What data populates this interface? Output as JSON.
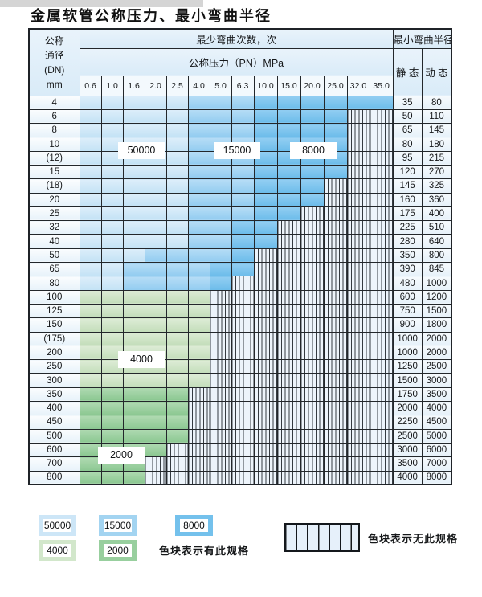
{
  "page_title": "金属软管公称压力、最小弯曲半径",
  "table": {
    "dn_header_lines": [
      "公称",
      "通径",
      "(DN)",
      "mm"
    ],
    "cycles_header": "最少弯曲次数，次",
    "pressure_header": "公称压力（PN）MPa",
    "pressure_columns": [
      "0.6",
      "1.0",
      "1.6",
      "2.0",
      "2.5",
      "4.0",
      "5.0",
      "6.3",
      "10.0",
      "15.0",
      "20.0",
      "25.0",
      "32.0",
      "35.0"
    ],
    "radius_header": "最小弯曲半径",
    "static_header": "静 态",
    "dynamic_header": "动 态",
    "overlay_labels": [
      "50000",
      "15000",
      "8000",
      "4000",
      "2000"
    ]
  },
  "chart_data": {
    "type": "table",
    "title": "金属软管公称压力、最小弯曲半径",
    "pressure_columns_MPa": [
      0.6,
      1.0,
      1.6,
      2.0,
      2.5,
      4.0,
      5.0,
      6.3,
      10.0,
      15.0,
      20.0,
      25.0,
      32.0,
      35.0
    ],
    "cycle_value_levels": [
      50000,
      15000,
      8000,
      4000,
      2000
    ],
    "legend_note_has_spec": "色块表示有此规格",
    "legend_note_no_spec": "色块表示无此规格",
    "rows": [
      {
        "dn": "4",
        "cycles": [
          50000,
          50000,
          50000,
          50000,
          50000,
          15000,
          15000,
          15000,
          8000,
          8000,
          8000,
          8000,
          8000,
          8000
        ],
        "static": 35,
        "dynamic": 80
      },
      {
        "dn": "6",
        "cycles": [
          50000,
          50000,
          50000,
          50000,
          50000,
          15000,
          15000,
          15000,
          8000,
          8000,
          8000,
          8000,
          null,
          null
        ],
        "static": 50,
        "dynamic": 110
      },
      {
        "dn": "8",
        "cycles": [
          50000,
          50000,
          50000,
          50000,
          50000,
          15000,
          15000,
          15000,
          8000,
          8000,
          8000,
          8000,
          null,
          null
        ],
        "static": 65,
        "dynamic": 145
      },
      {
        "dn": "10",
        "cycles": [
          50000,
          50000,
          50000,
          50000,
          50000,
          15000,
          15000,
          15000,
          8000,
          8000,
          8000,
          8000,
          null,
          null
        ],
        "static": 80,
        "dynamic": 180
      },
      {
        "dn": "(12)",
        "cycles": [
          50000,
          50000,
          50000,
          50000,
          50000,
          15000,
          15000,
          15000,
          8000,
          8000,
          8000,
          8000,
          null,
          null
        ],
        "static": 95,
        "dynamic": 215
      },
      {
        "dn": "15",
        "cycles": [
          50000,
          50000,
          50000,
          50000,
          50000,
          15000,
          15000,
          15000,
          8000,
          8000,
          8000,
          8000,
          null,
          null
        ],
        "static": 120,
        "dynamic": 270
      },
      {
        "dn": "(18)",
        "cycles": [
          50000,
          50000,
          50000,
          50000,
          50000,
          15000,
          15000,
          15000,
          8000,
          8000,
          8000,
          null,
          null,
          null
        ],
        "static": 145,
        "dynamic": 325
      },
      {
        "dn": "20",
        "cycles": [
          50000,
          50000,
          50000,
          50000,
          50000,
          15000,
          15000,
          15000,
          8000,
          8000,
          8000,
          null,
          null,
          null
        ],
        "static": 160,
        "dynamic": 360
      },
      {
        "dn": "25",
        "cycles": [
          50000,
          50000,
          50000,
          50000,
          50000,
          15000,
          15000,
          15000,
          8000,
          8000,
          null,
          null,
          null,
          null
        ],
        "static": 175,
        "dynamic": 400
      },
      {
        "dn": "32",
        "cycles": [
          50000,
          50000,
          50000,
          50000,
          50000,
          15000,
          15000,
          8000,
          8000,
          null,
          null,
          null,
          null,
          null
        ],
        "static": 225,
        "dynamic": 510
      },
      {
        "dn": "40",
        "cycles": [
          50000,
          50000,
          50000,
          50000,
          50000,
          15000,
          15000,
          8000,
          8000,
          null,
          null,
          null,
          null,
          null
        ],
        "static": 280,
        "dynamic": 640
      },
      {
        "dn": "50",
        "cycles": [
          50000,
          50000,
          50000,
          15000,
          15000,
          15000,
          15000,
          8000,
          null,
          null,
          null,
          null,
          null,
          null
        ],
        "static": 350,
        "dynamic": 800
      },
      {
        "dn": "65",
        "cycles": [
          50000,
          50000,
          15000,
          15000,
          15000,
          15000,
          8000,
          8000,
          null,
          null,
          null,
          null,
          null,
          null
        ],
        "static": 390,
        "dynamic": 845
      },
      {
        "dn": "80",
        "cycles": [
          50000,
          50000,
          15000,
          15000,
          15000,
          15000,
          8000,
          null,
          null,
          null,
          null,
          null,
          null,
          null
        ],
        "static": 480,
        "dynamic": 1000
      },
      {
        "dn": "100",
        "cycles": [
          4000,
          4000,
          4000,
          4000,
          4000,
          4000,
          null,
          null,
          null,
          null,
          null,
          null,
          null,
          null
        ],
        "static": 600,
        "dynamic": 1200
      },
      {
        "dn": "125",
        "cycles": [
          4000,
          4000,
          4000,
          4000,
          4000,
          4000,
          null,
          null,
          null,
          null,
          null,
          null,
          null,
          null
        ],
        "static": 750,
        "dynamic": 1500
      },
      {
        "dn": "150",
        "cycles": [
          4000,
          4000,
          4000,
          4000,
          4000,
          4000,
          null,
          null,
          null,
          null,
          null,
          null,
          null,
          null
        ],
        "static": 900,
        "dynamic": 1800
      },
      {
        "dn": "(175)",
        "cycles": [
          4000,
          4000,
          4000,
          4000,
          4000,
          4000,
          null,
          null,
          null,
          null,
          null,
          null,
          null,
          null
        ],
        "static": 1000,
        "dynamic": 2000
      },
      {
        "dn": "200",
        "cycles": [
          4000,
          4000,
          4000,
          4000,
          4000,
          4000,
          null,
          null,
          null,
          null,
          null,
          null,
          null,
          null
        ],
        "static": 1000,
        "dynamic": 2000
      },
      {
        "dn": "250",
        "cycles": [
          4000,
          4000,
          4000,
          4000,
          4000,
          4000,
          null,
          null,
          null,
          null,
          null,
          null,
          null,
          null
        ],
        "static": 1250,
        "dynamic": 2500
      },
      {
        "dn": "300",
        "cycles": [
          4000,
          4000,
          4000,
          4000,
          4000,
          4000,
          null,
          null,
          null,
          null,
          null,
          null,
          null,
          null
        ],
        "static": 1500,
        "dynamic": 3000
      },
      {
        "dn": "350",
        "cycles": [
          2000,
          2000,
          2000,
          2000,
          2000,
          null,
          null,
          null,
          null,
          null,
          null,
          null,
          null,
          null
        ],
        "static": 1750,
        "dynamic": 3500
      },
      {
        "dn": "400",
        "cycles": [
          2000,
          2000,
          2000,
          2000,
          2000,
          null,
          null,
          null,
          null,
          null,
          null,
          null,
          null,
          null
        ],
        "static": 2000,
        "dynamic": 4000
      },
      {
        "dn": "450",
        "cycles": [
          2000,
          2000,
          2000,
          2000,
          2000,
          null,
          null,
          null,
          null,
          null,
          null,
          null,
          null,
          null
        ],
        "static": 2250,
        "dynamic": 4500
      },
      {
        "dn": "500",
        "cycles": [
          2000,
          2000,
          2000,
          2000,
          2000,
          null,
          null,
          null,
          null,
          null,
          null,
          null,
          null,
          null
        ],
        "static": 2500,
        "dynamic": 5000
      },
      {
        "dn": "600",
        "cycles": [
          2000,
          2000,
          2000,
          2000,
          null,
          null,
          null,
          null,
          null,
          null,
          null,
          null,
          null,
          null
        ],
        "static": 3000,
        "dynamic": 6000
      },
      {
        "dn": "700",
        "cycles": [
          2000,
          2000,
          2000,
          null,
          null,
          null,
          null,
          null,
          null,
          null,
          null,
          null,
          null,
          null
        ],
        "static": 3500,
        "dynamic": 7000
      },
      {
        "dn": "800",
        "cycles": [
          2000,
          2000,
          2000,
          null,
          null,
          null,
          null,
          null,
          null,
          null,
          null,
          null,
          null,
          null
        ],
        "static": 4000,
        "dynamic": 8000
      }
    ]
  },
  "legend": {
    "items": [
      {
        "label": "50000",
        "color": "#cde6f7"
      },
      {
        "label": "15000",
        "color": "#a3d4f1"
      },
      {
        "label": "8000",
        "color": "#74c1ec"
      },
      {
        "label": "4000",
        "color": "#d2e7cb"
      },
      {
        "label": "2000",
        "color": "#98cf9e"
      }
    ],
    "has_spec_text": "色块表示有此规格",
    "no_spec_text": "色块表示无此规格"
  },
  "colors": {
    "cycles_50000": "#cde6f7",
    "cycles_15000": "#a3d4f1",
    "cycles_8000": "#74c1ec",
    "cycles_4000": "#d2e7cb",
    "cycles_2000": "#98cf9e",
    "hatch_background": "#edf4fb",
    "grid_line": "#23272b"
  }
}
